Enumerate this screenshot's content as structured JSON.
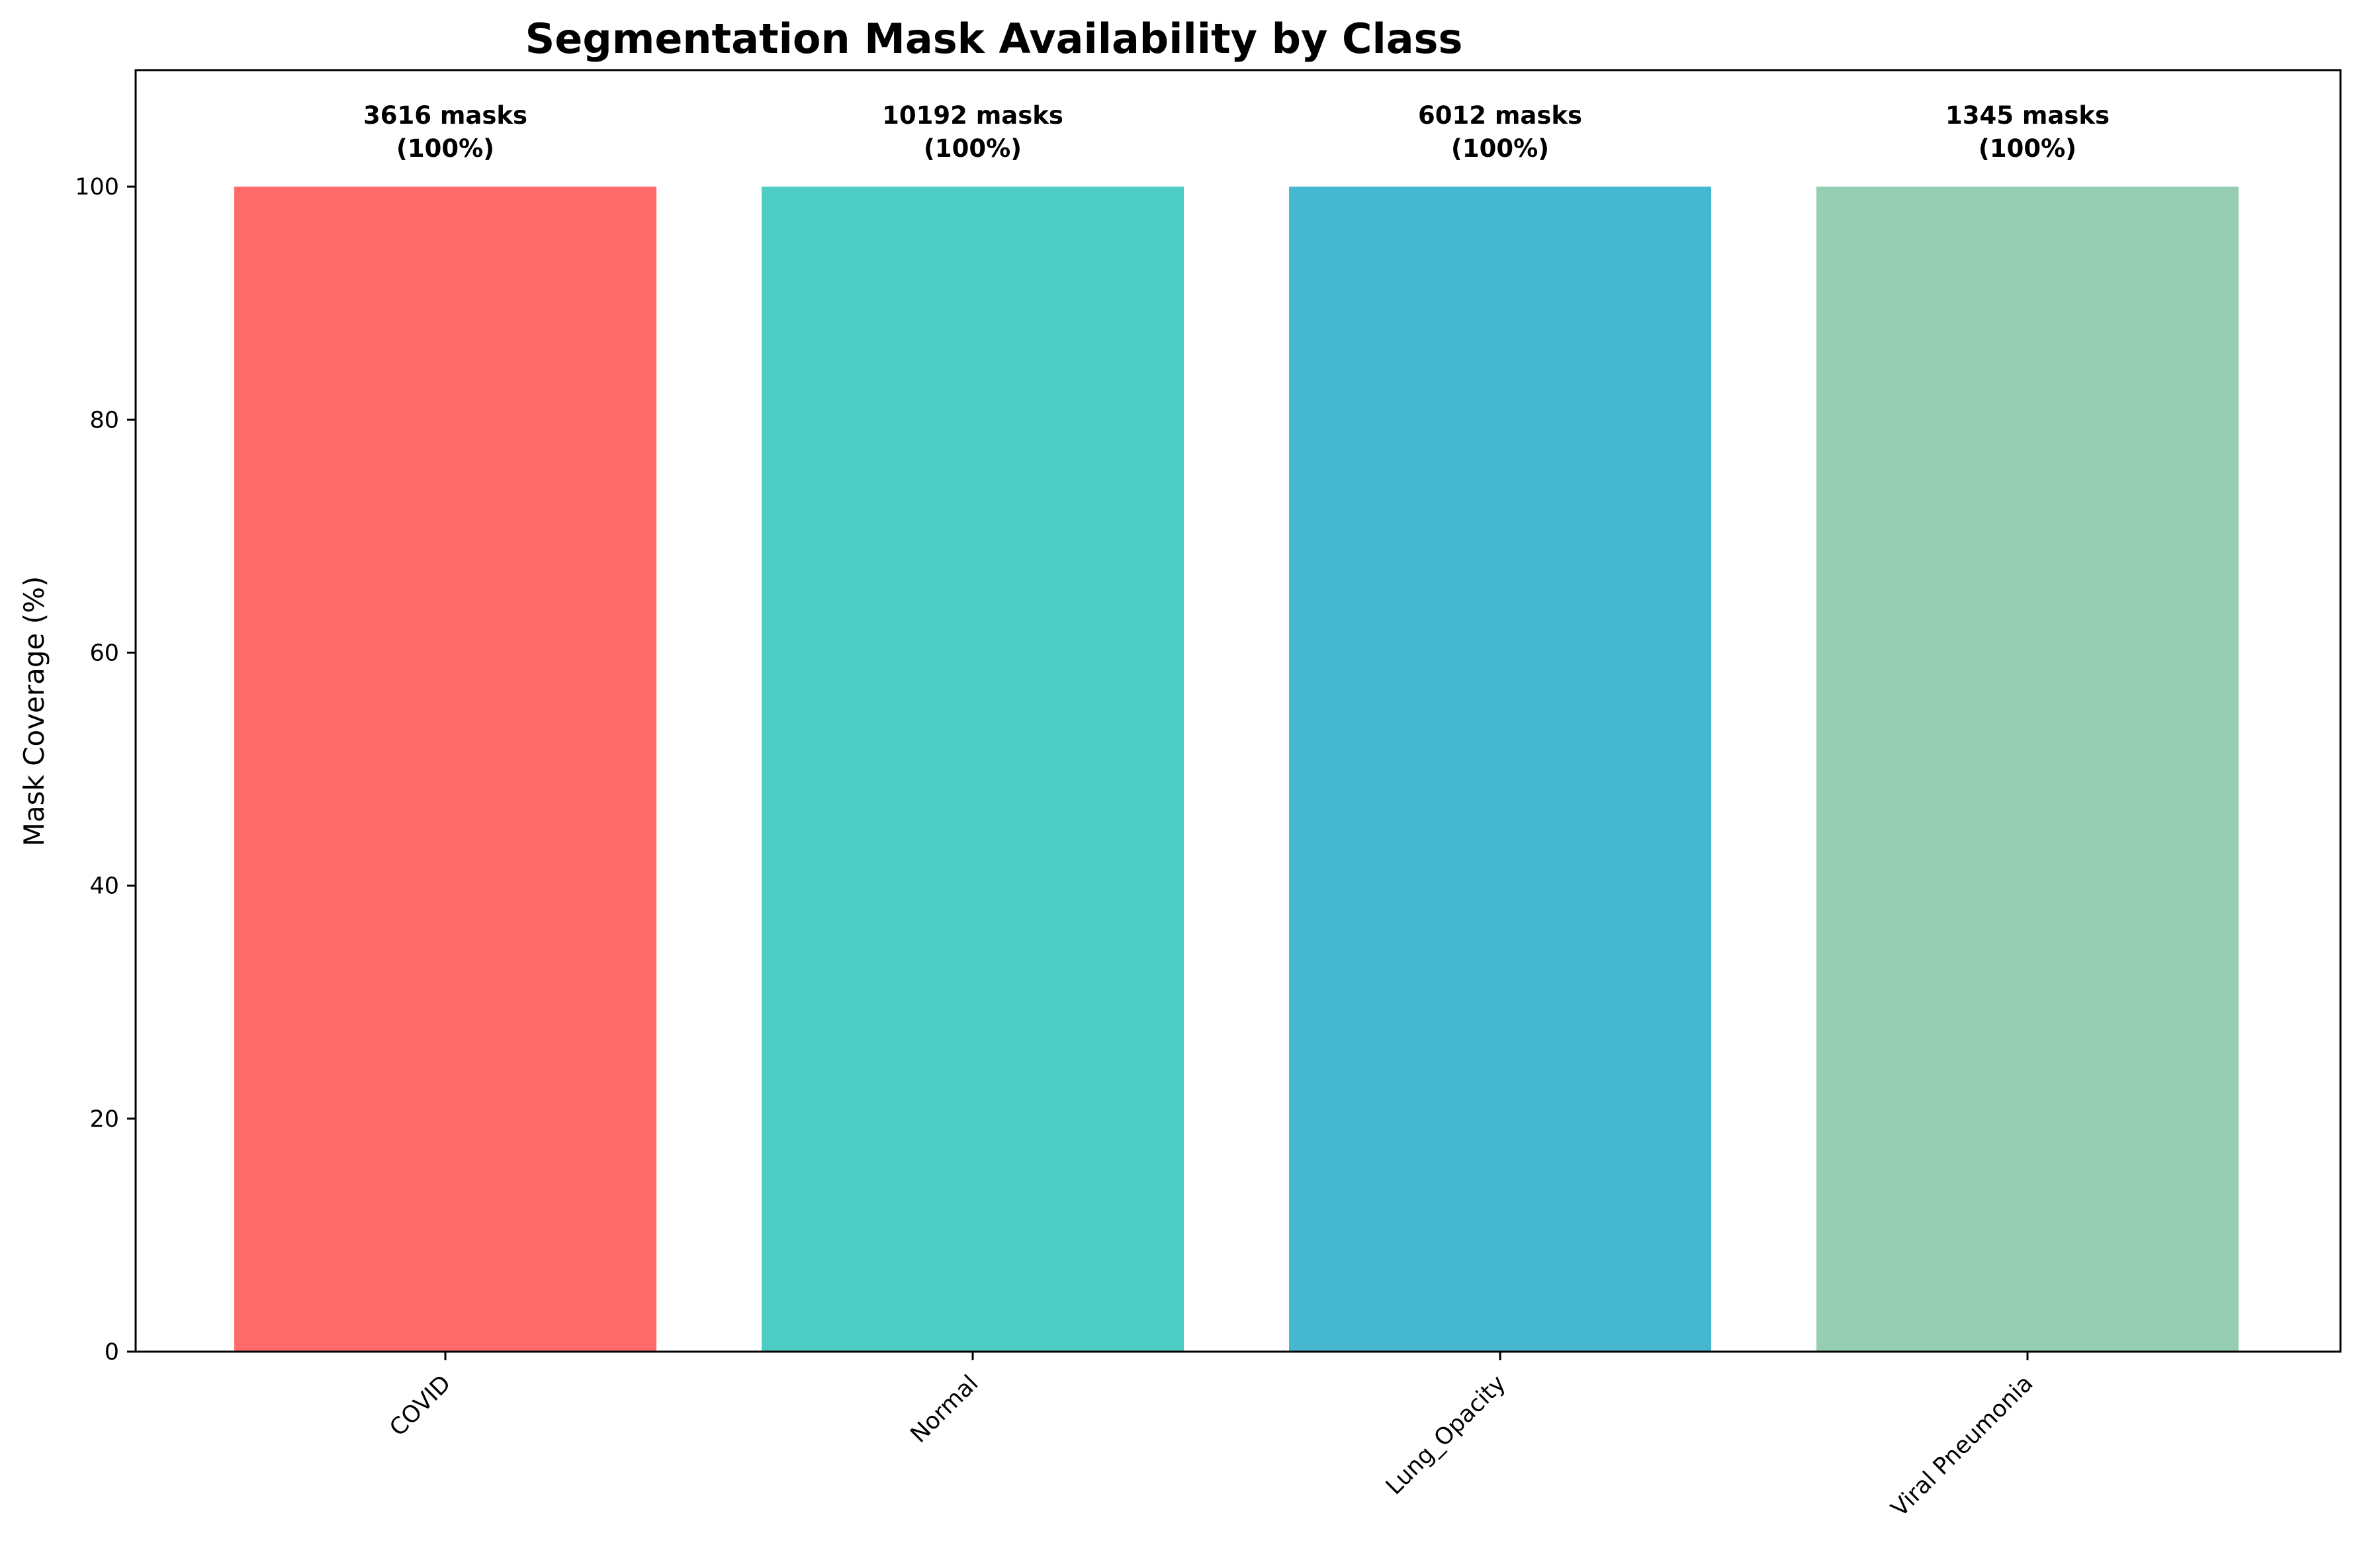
{
  "chart_data": {
    "type": "bar",
    "title": "Segmentation Mask Availability by Class",
    "xlabel": "",
    "ylabel": "Mask Coverage (%)",
    "categories": [
      "COVID",
      "Normal",
      "Lung_Opacity",
      "Viral Pneumonia"
    ],
    "values": [
      100,
      100,
      100,
      100
    ],
    "colors": [
      "#FF6B6B",
      "#4ECDC4",
      "#45B7D1",
      "#96CEB4"
    ],
    "annotations": [
      {
        "line1": "3616 masks",
        "line2": "(100%)"
      },
      {
        "line1": "10192 masks",
        "line2": "(100%)"
      },
      {
        "line1": "6012 masks",
        "line2": "(100%)"
      },
      {
        "line1": "1345 masks",
        "line2": "(100%)"
      }
    ],
    "ylim": [
      0,
      110
    ],
    "yticks": [
      0,
      20,
      40,
      60,
      80,
      100
    ],
    "grid": false,
    "legend": "none"
  }
}
